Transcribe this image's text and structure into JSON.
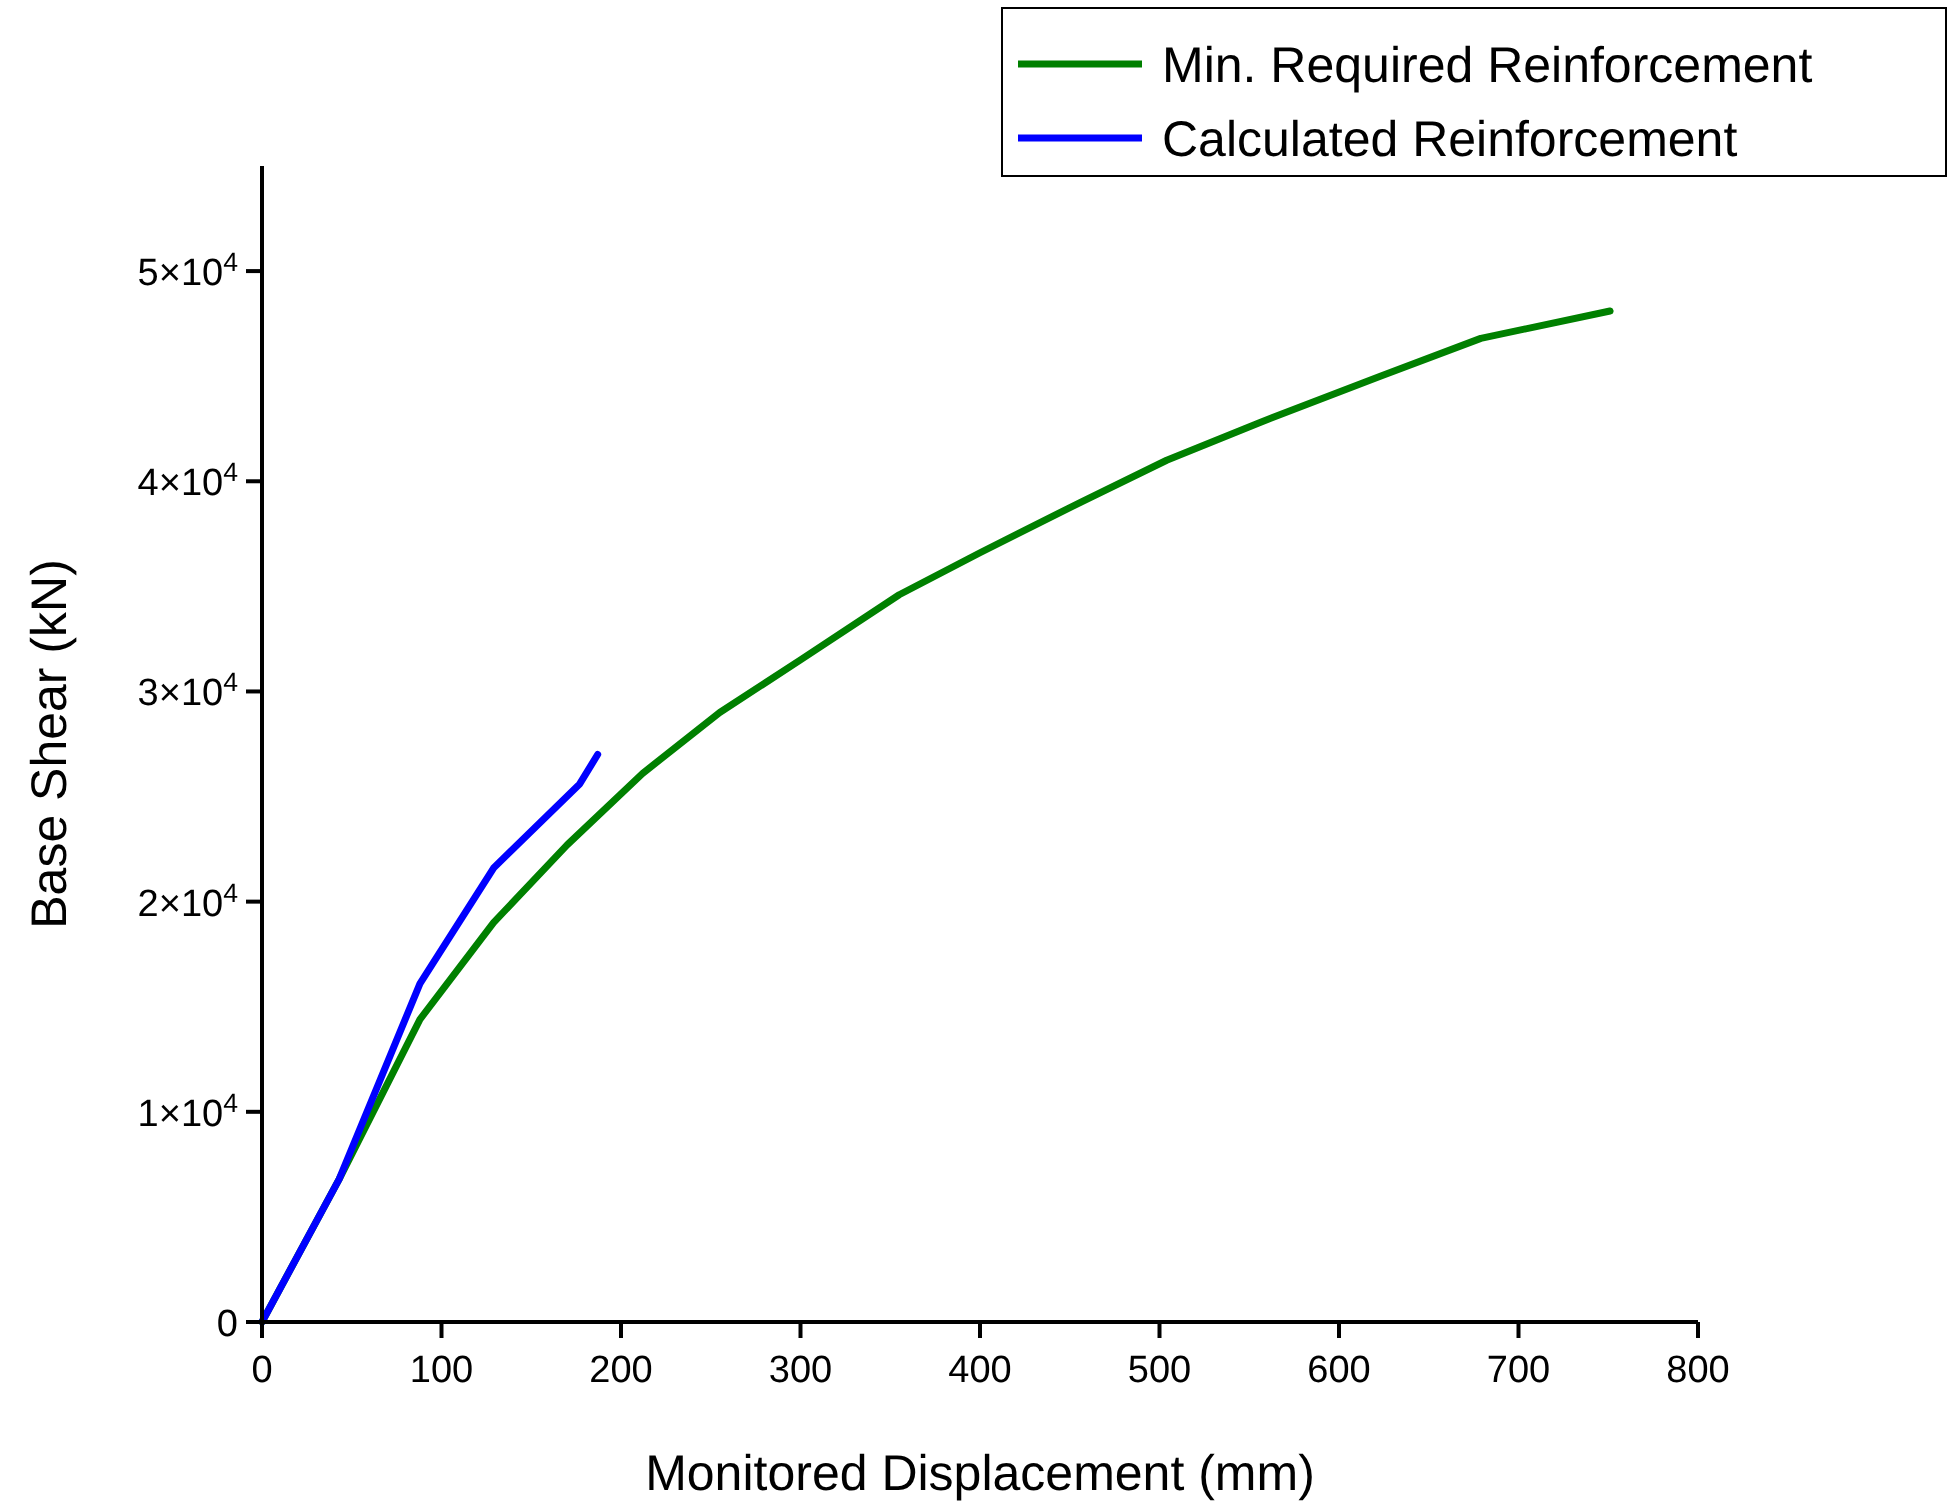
{
  "chart_data": {
    "type": "line",
    "xlabel": "Monitored Displacement (mm)",
    "ylabel": "Base Shear (kN)",
    "xlim": [
      0,
      800
    ],
    "xticks": [
      0,
      100,
      200,
      300,
      400,
      500,
      600,
      700,
      800
    ],
    "ylim": [
      0,
      55000
    ],
    "yticks": [
      0,
      {
        "value": 10000,
        "label": "1×10$^{4}$"
      },
      {
        "value": 20000,
        "label": "2×10$^{4}$"
      },
      {
        "value": 30000,
        "label": "3×10$^{4}$"
      },
      {
        "value": 40000,
        "label": "4×10$^{4}$"
      },
      {
        "value": 50000,
        "label": "5×10$^{4}$"
      }
    ],
    "grid": false,
    "legend": "top right",
    "marker": "none",
    "line_style": "solid",
    "series": [
      {
        "name": "Min. Required Reinforcement",
        "color": "#008000",
        "x": [
          0,
          43,
          88,
          129,
          170,
          212,
          255,
          300,
          355,
          400,
          456,
          504,
          556,
          623,
          679,
          751
        ],
        "values": [
          0,
          6800,
          14400,
          19000,
          22700,
          26100,
          29000,
          31500,
          34600,
          36600,
          39000,
          41000,
          42800,
          45000,
          46800,
          48100
        ]
      },
      {
        "name": "Calculated Reinforcement",
        "color": "#0000ff",
        "x": [
          0,
          43,
          88,
          129,
          177,
          187
        ],
        "values": [
          0,
          6800,
          16100,
          21600,
          25600,
          27000
        ]
      }
    ]
  }
}
